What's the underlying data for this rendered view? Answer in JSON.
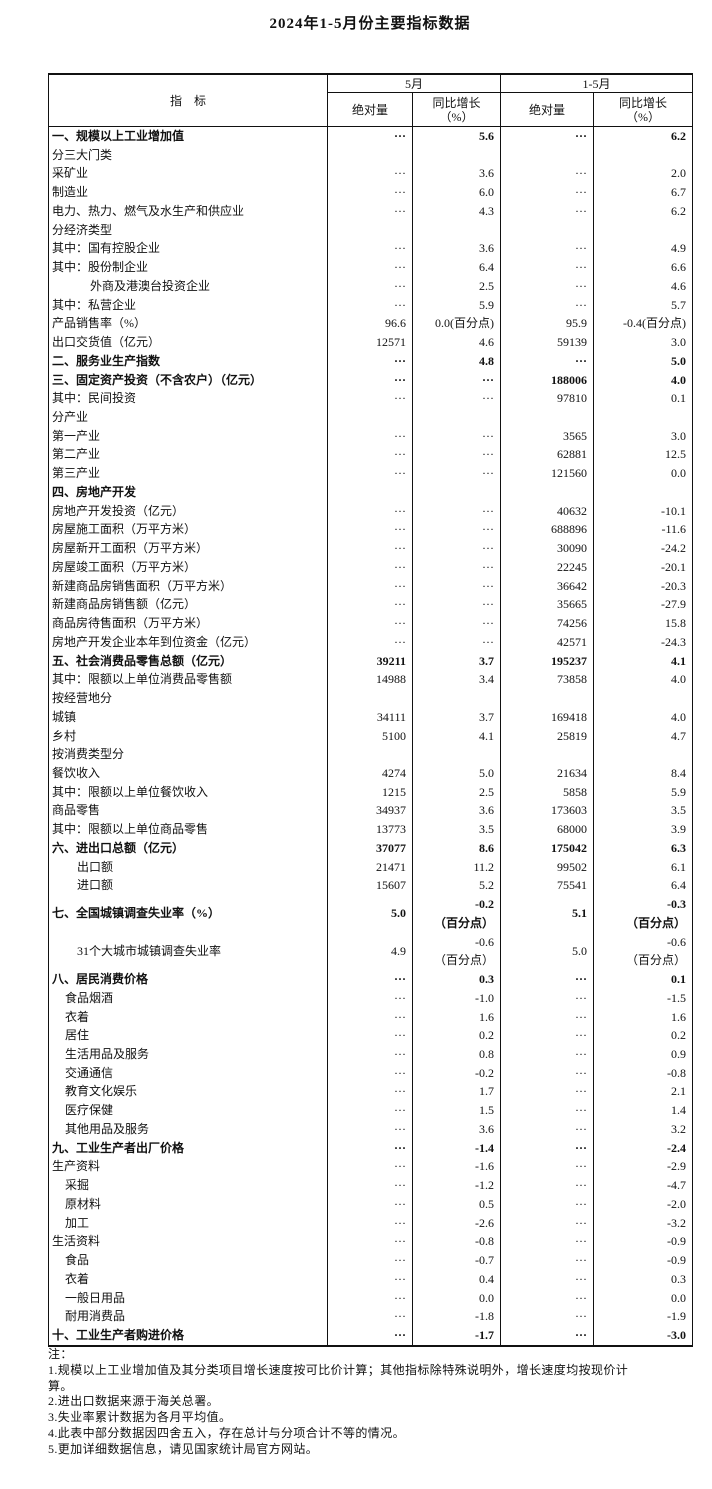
{
  "page": {
    "title": "2024年1-5月份主要指标数据"
  },
  "table": {
    "header": {
      "indicator": "指　标",
      "group_may": "5月",
      "group_janmay": "1-5月",
      "absolute": "绝对量",
      "growth": "同比增长\n（%）"
    },
    "row_format": [
      "label",
      "indent_level",
      "bold",
      "may_absolute",
      "may_growth",
      "janmay_absolute",
      "janmay_growth"
    ],
    "rows": [
      [
        "一、规模以上工业增加值",
        0,
        1,
        "···",
        "5.6",
        "···",
        "6.2"
      ],
      [
        "分三大门类",
        0,
        0,
        "",
        "",
        "",
        ""
      ],
      [
        "采矿业",
        0,
        0,
        "···",
        "3.6",
        "···",
        "2.0"
      ],
      [
        "制造业",
        0,
        0,
        "···",
        "6.0",
        "···",
        "6.7"
      ],
      [
        "电力、热力、燃气及水生产和供应业",
        0,
        0,
        "···",
        "4.3",
        "···",
        "6.2"
      ],
      [
        "分经济类型",
        0,
        0,
        "",
        "",
        "",
        ""
      ],
      [
        "其中：国有控股企业",
        0,
        0,
        "···",
        "3.6",
        "···",
        "4.9"
      ],
      [
        "其中：股份制企业",
        0,
        0,
        "···",
        "6.4",
        "···",
        "6.6"
      ],
      [
        "外商及港澳台投资企业",
        3,
        0,
        "···",
        "2.5",
        "···",
        "4.6"
      ],
      [
        "其中：私营企业",
        0,
        0,
        "···",
        "5.9",
        "···",
        "5.7"
      ],
      [
        "产品销售率（%）",
        0,
        0,
        "96.6",
        "0.0(百分点)",
        "95.9",
        "-0.4(百分点)"
      ],
      [
        "出口交货值（亿元）",
        0,
        0,
        "12571",
        "4.6",
        "59139",
        "3.0"
      ],
      [
        "二、服务业生产指数",
        0,
        1,
        "···",
        "4.8",
        "···",
        "5.0"
      ],
      [
        "三、固定资产投资（不含农户）（亿元）",
        0,
        1,
        "···",
        "···",
        "188006",
        "4.0"
      ],
      [
        "其中：民间投资",
        0,
        0,
        "···",
        "···",
        "97810",
        "0.1"
      ],
      [
        "分产业",
        0,
        0,
        "",
        "",
        "",
        ""
      ],
      [
        "第一产业",
        0,
        0,
        "···",
        "···",
        "3565",
        "3.0"
      ],
      [
        "第二产业",
        0,
        0,
        "···",
        "···",
        "62881",
        "12.5"
      ],
      [
        "第三产业",
        0,
        0,
        "···",
        "···",
        "121560",
        "0.0"
      ],
      [
        "四、房地产开发",
        0,
        1,
        "",
        "",
        "",
        ""
      ],
      [
        "房地产开发投资（亿元）",
        0,
        0,
        "···",
        "···",
        "40632",
        "-10.1"
      ],
      [
        "房屋施工面积（万平方米）",
        0,
        0,
        "···",
        "···",
        "688896",
        "-11.6"
      ],
      [
        "房屋新开工面积（万平方米）",
        0,
        0,
        "···",
        "···",
        "30090",
        "-24.2"
      ],
      [
        "房屋竣工面积（万平方米）",
        0,
        0,
        "···",
        "···",
        "22245",
        "-20.1"
      ],
      [
        "新建商品房销售面积（万平方米）",
        0,
        0,
        "···",
        "···",
        "36642",
        "-20.3"
      ],
      [
        "新建商品房销售额（亿元）",
        0,
        0,
        "···",
        "···",
        "35665",
        "-27.9"
      ],
      [
        "商品房待售面积（万平方米）",
        0,
        0,
        "···",
        "···",
        "74256",
        "15.8"
      ],
      [
        "房地产开发企业本年到位资金（亿元）",
        0,
        0,
        "···",
        "···",
        "42571",
        "-24.3"
      ],
      [
        "五、社会消费品零售总额（亿元）",
        0,
        1,
        "39211",
        "3.7",
        "195237",
        "4.1"
      ],
      [
        "其中：限额以上单位消费品零售额",
        0,
        0,
        "14988",
        "3.4",
        "73858",
        "4.0"
      ],
      [
        "按经营地分",
        0,
        0,
        "",
        "",
        "",
        ""
      ],
      [
        "城镇",
        0,
        0,
        "34111",
        "3.7",
        "169418",
        "4.0"
      ],
      [
        "乡村",
        0,
        0,
        "5100",
        "4.1",
        "25819",
        "4.7"
      ],
      [
        "按消费类型分",
        0,
        0,
        "",
        "",
        "",
        ""
      ],
      [
        "餐饮收入",
        0,
        0,
        "4274",
        "5.0",
        "21634",
        "8.4"
      ],
      [
        "其中：限额以上单位餐饮收入",
        0,
        0,
        "1215",
        "2.5",
        "5858",
        "5.9"
      ],
      [
        "商品零售",
        0,
        0,
        "34937",
        "3.6",
        "173603",
        "3.5"
      ],
      [
        "其中：限额以上单位商品零售",
        0,
        0,
        "13773",
        "3.5",
        "68000",
        "3.9"
      ],
      [
        "六、进出口总额（亿元）",
        0,
        1,
        "37077",
        "8.6",
        "175042",
        "6.3"
      ],
      [
        "出口额",
        2,
        0,
        "21471",
        "11.2",
        "99502",
        "6.1"
      ],
      [
        "进口额",
        2,
        0,
        "15607",
        "5.2",
        "75541",
        "6.4"
      ],
      [
        "七、全国城镇调查失业率（%）",
        0,
        1,
        "5.0",
        "-0.2\n（百分点）",
        "5.1",
        "-0.3\n（百分点）"
      ],
      [
        "31个大城市城镇调查失业率",
        2,
        0,
        "4.9",
        "-0.6\n（百分点）",
        "5.0",
        "-0.6\n（百分点）"
      ],
      [
        "八、居民消费价格",
        0,
        1,
        "···",
        "0.3",
        "···",
        "0.1"
      ],
      [
        "食品烟酒",
        1,
        0,
        "···",
        "-1.0",
        "···",
        "-1.5"
      ],
      [
        "衣着",
        1,
        0,
        "···",
        "1.6",
        "···",
        "1.6"
      ],
      [
        "居住",
        1,
        0,
        "···",
        "0.2",
        "···",
        "0.2"
      ],
      [
        "生活用品及服务",
        1,
        0,
        "···",
        "0.8",
        "···",
        "0.9"
      ],
      [
        "交通通信",
        1,
        0,
        "···",
        "-0.2",
        "···",
        "-0.8"
      ],
      [
        "教育文化娱乐",
        1,
        0,
        "···",
        "1.7",
        "···",
        "2.1"
      ],
      [
        "医疗保健",
        1,
        0,
        "···",
        "1.5",
        "···",
        "1.4"
      ],
      [
        "其他用品及服务",
        1,
        0,
        "···",
        "3.6",
        "···",
        "3.2"
      ],
      [
        "九、工业生产者出厂价格",
        0,
        1,
        "···",
        "-1.4",
        "···",
        "-2.4"
      ],
      [
        "生产资料",
        0,
        0,
        "···",
        "-1.6",
        "···",
        "-2.9"
      ],
      [
        "采掘",
        1,
        0,
        "···",
        "-1.2",
        "···",
        "-4.7"
      ],
      [
        "原材料",
        1,
        0,
        "···",
        "0.5",
        "···",
        "-2.0"
      ],
      [
        "加工",
        1,
        0,
        "···",
        "-2.6",
        "···",
        "-3.2"
      ],
      [
        "生活资料",
        0,
        0,
        "···",
        "-0.8",
        "···",
        "-0.9"
      ],
      [
        "食品",
        1,
        0,
        "···",
        "-0.7",
        "···",
        "-0.9"
      ],
      [
        "衣着",
        1,
        0,
        "···",
        "0.4",
        "···",
        "0.3"
      ],
      [
        "一般日用品",
        1,
        0,
        "···",
        "0.0",
        "···",
        "0.0"
      ],
      [
        "耐用消费品",
        1,
        0,
        "···",
        "-1.8",
        "···",
        "-1.9"
      ],
      [
        "十、工业生产者购进价格",
        0,
        1,
        "···",
        "-1.7",
        "···",
        "-3.0"
      ]
    ]
  },
  "notes": {
    "label": "注：",
    "items": [
      "1.规模以上工业增加值及其分类项目增长速度按可比价计算；其他指标除特殊说明外，增长速度均按现价计\n算。",
      "2.进出口数据来源于海关总署。",
      "3.失业率累计数据为各月平均值。",
      "4.此表中部分数据因四舍五入，存在总计与分项合计不等的情况。",
      "5.更加详细数据信息，请见国家统计局官方网站。"
    ]
  }
}
